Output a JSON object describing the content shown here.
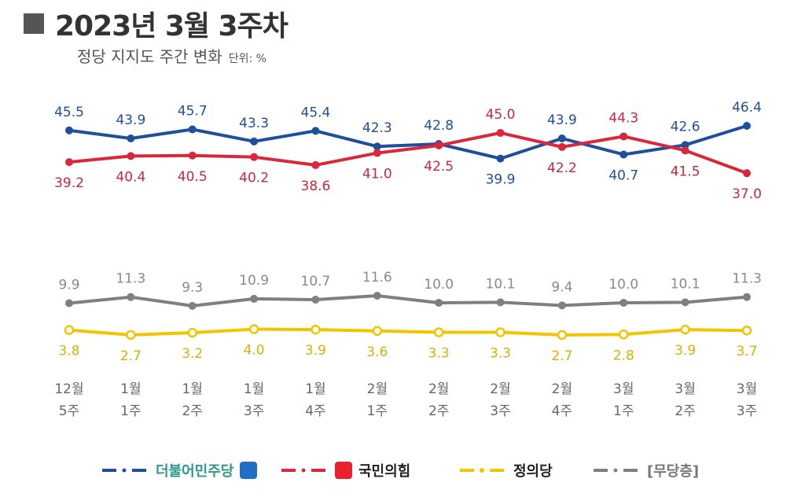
{
  "title": "2023년 3월 3주차",
  "subtitle": "정당 지지도 주간 변화",
  "unit": "단위: %",
  "x_labels_top": [
    "12월",
    "1월",
    "1월",
    "1월",
    "1월",
    "2월",
    "2월",
    "2월",
    "2월",
    "3월",
    "3월",
    "3월"
  ],
  "x_labels_bottom": [
    "5주",
    "1주",
    "2주",
    "3주",
    "4주",
    "1주",
    "2주",
    "3주",
    "4주",
    "1주",
    "2주",
    "3주"
  ],
  "legend": {
    "democratic": "더불어민주당",
    "ppp": "국민의힘",
    "justice": "정의당",
    "none": "[무당층]"
  },
  "colors": {
    "democratic": "#1f4e9c",
    "ppp": "#d9273b",
    "justice": "#f2c500",
    "none": "#7f7f7f"
  },
  "chart_data": {
    "type": "line",
    "title": "2023년 3월 3주차",
    "subtitle": "정당 지지도 주간 변화",
    "x": [
      "12월 5주",
      "1월 1주",
      "1월 2주",
      "1월 3주",
      "1월 4주",
      "2월 1주",
      "2월 2주",
      "2월 3주",
      "2월 4주",
      "3월 1주",
      "3월 2주",
      "3월 3주"
    ],
    "series": [
      {
        "name": "더불어민주당",
        "values": [
          45.5,
          43.9,
          45.7,
          43.3,
          45.4,
          42.3,
          42.8,
          39.9,
          43.9,
          40.7,
          42.6,
          46.4
        ]
      },
      {
        "name": "국민의힘",
        "values": [
          39.2,
          40.4,
          40.5,
          40.2,
          38.6,
          41.0,
          42.5,
          45.0,
          42.2,
          44.3,
          41.5,
          37.0
        ]
      },
      {
        "name": "[무당층]",
        "values": [
          9.9,
          11.3,
          9.3,
          10.9,
          10.7,
          11.6,
          10.0,
          10.1,
          9.4,
          10.0,
          10.1,
          11.3
        ]
      },
      {
        "name": "정의당",
        "values": [
          3.8,
          2.7,
          3.2,
          4.0,
          3.9,
          3.6,
          3.3,
          3.3,
          2.7,
          2.8,
          3.9,
          3.7
        ]
      }
    ],
    "labels_display": {
      "democratic": [
        "45.5",
        "43.9",
        "45.7",
        "43.3",
        "45.4",
        "42.3",
        "42.8",
        "39.9",
        "43.9",
        "40.7",
        "42.6",
        "46.4"
      ],
      "ppp": [
        "39.2",
        "40.4",
        "40.5",
        "40.2",
        "38.6",
        "41.0",
        "42.5",
        "45.0",
        "42.2",
        "44.3",
        "41.5",
        "37.0"
      ],
      "none": [
        "9.9",
        "11.3",
        "9.3",
        "10.9",
        "10.7",
        "11.6",
        "10.0",
        "10.1",
        "9.4",
        "10.0",
        "10.1",
        "11.3"
      ],
      "justice": [
        "3.8",
        "2.7",
        "3.2",
        "4.0",
        "3.9",
        "3.6",
        "3.3",
        "3.3",
        "2.7",
        "2.8",
        "3.9",
        "3.7"
      ]
    },
    "grid": false,
    "legend": "bottom"
  }
}
